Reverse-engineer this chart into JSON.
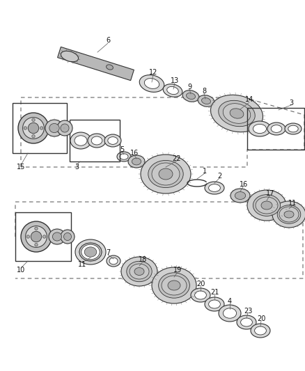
{
  "bg_color": "#ffffff",
  "lc": "#555555",
  "lc_dark": "#333333",
  "part_gray": "#c8c8c8",
  "part_dark": "#888888",
  "part_light": "#e0e0e0",
  "tooth_color": "#999999"
}
